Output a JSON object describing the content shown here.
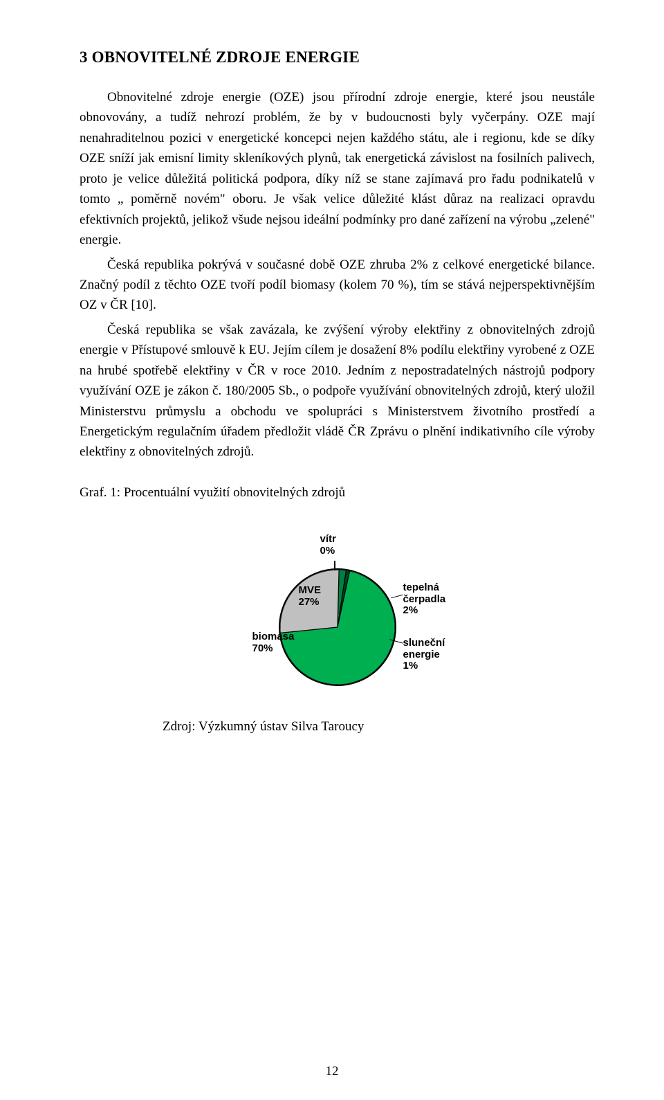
{
  "heading": "3   OBNOVITELNÉ ZDROJE ENERGIE",
  "paragraphs": {
    "p1": "Obnovitelné zdroje energie (OZE) jsou přírodní zdroje energie, které jsou neustále obnovovány, a tudíž nehrozí problém, že by v budoucnosti byly vyčerpány. OZE mají nenahraditelnou pozici v energetické koncepci nejen každého státu, ale i regionu, kde se díky OZE sníží jak emisní limity skleníkových plynů, tak energetická závislost na fosilních palivech, proto je velice důležitá politická podpora, díky níž se stane zajímavá pro řadu podnikatelů v tomto „ poměrně novém\" oboru. Je však velice důležité klást důraz na realizaci opravdu efektivních projektů, jelikož všude nejsou ideální podmínky pro dané zařízení na výrobu „zelené\" energie.",
    "p2": "Česká republika pokrývá v současné době OZE zhruba 2%  z celkové energetické bilance. Značný podíl z těchto OZE tvoří podíl biomasy (kolem 70 %), tím se stává nejperspektivnějším OZ v ČR [10].",
    "p3": "Česká republika se však zavázala, ke zvýšení výroby elektřiny z obnovitelných zdrojů energie v Přístupové smlouvě k EU. Jejím cílem je dosažení 8% podílu elektřiny vyrobené z OZE na hrubé spotřebě elektřiny v ČR v roce 2010. Jedním z nepostradatelných nástrojů podpory využívání OZE je zákon č. 180/2005 Sb., o podpoře využívání obnovitelných zdrojů, který uložil Ministerstvu průmyslu a obchodu ve spolupráci s Ministerstvem životního prostředí a Energetickým regulačním úřadem předložit vládě ČR Zprávu o plnění indikativního cíle výroby elektřiny z obnovitelných zdrojů."
  },
  "chart_caption": "Graf. 1: Procentuální využití obnovitelných zdrojů",
  "source_line": "Zdroj: Výzkumný ústav Silva Taroucy",
  "page_number": "12",
  "pie_chart": {
    "type": "pie",
    "background_color": "#ffffff",
    "border_color": "#000000",
    "border_width": 2,
    "font_family": "Arial",
    "font_weight": "bold",
    "label_fontsize": 15,
    "slices": [
      {
        "label_line1": "biomasa",
        "label_line2": "70%",
        "value": 70,
        "color": "#00b050"
      },
      {
        "label_line1": "MVE",
        "label_line2": "27%",
        "value": 27,
        "color": "#c0c0c0"
      },
      {
        "label_line1": "vítr",
        "label_line2": "0%",
        "value": 0,
        "color": "#000000"
      },
      {
        "label_line1": "tepelná",
        "label_line2": "čerpadla",
        "label_line3": "2%",
        "value": 2,
        "color": "#008040"
      },
      {
        "label_line1": "sluneční",
        "label_line2": "energie",
        "label_line3": "1%",
        "value": 1,
        "color": "#004020"
      }
    ]
  }
}
